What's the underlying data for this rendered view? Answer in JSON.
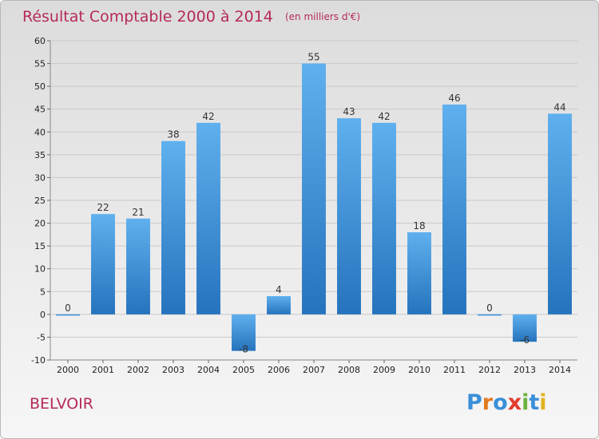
{
  "chart_data": {
    "type": "bar",
    "title": "Résultat Comptable 2000 à 2014",
    "unit": "(en milliers d'€)",
    "categories": [
      "2000",
      "2001",
      "2002",
      "2003",
      "2004",
      "2005",
      "2006",
      "2007",
      "2008",
      "2009",
      "2010",
      "2011",
      "2012",
      "2013",
      "2014"
    ],
    "values": [
      0,
      22,
      21,
      38,
      42,
      -8,
      4,
      55,
      43,
      42,
      18,
      46,
      0,
      -6,
      44
    ],
    "ylim": [
      -10,
      60
    ],
    "yticks": [
      -10,
      -5,
      0,
      5,
      10,
      15,
      20,
      25,
      30,
      35,
      40,
      45,
      50,
      55,
      60
    ],
    "grid": true,
    "bar_color": "#3a8fd8"
  },
  "place_name": "BELVOIR",
  "logo": {
    "letters": [
      "P",
      "r",
      "o",
      "x",
      "i",
      "t",
      "i"
    ],
    "colors": [
      "#3a8fd8",
      "#e07a1f",
      "#3a8fd8",
      "#e33b2e",
      "#6ab23e",
      "#3a8fd8",
      "#e0b21f"
    ]
  }
}
